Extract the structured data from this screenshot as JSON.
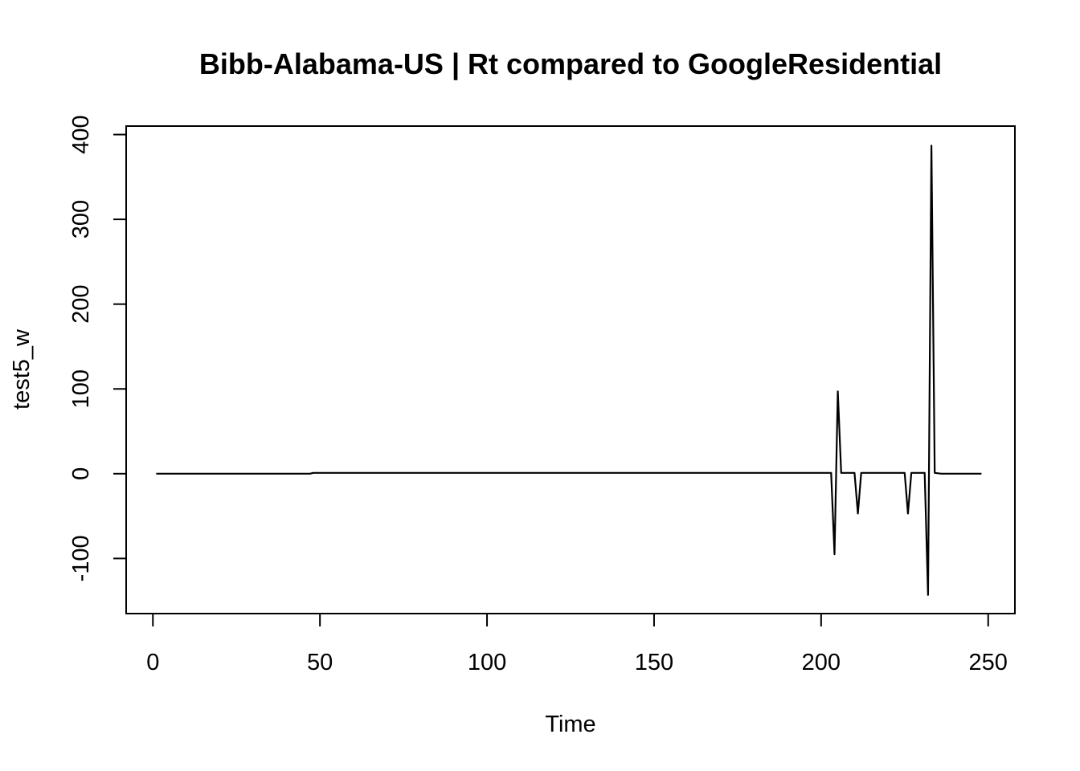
{
  "chart_data": {
    "type": "line",
    "title": "Bibb-Alabama-US | Rt compared to GoogleResidential",
    "xlabel": "Time",
    "ylabel": "test5_w",
    "xlim": [
      -8,
      258
    ],
    "ylim": [
      -165,
      410
    ],
    "x_ticks": [
      0,
      50,
      100,
      150,
      200,
      250
    ],
    "y_ticks": [
      -100,
      0,
      100,
      200,
      300,
      400
    ],
    "x_tick_labels": [
      "0",
      "50",
      "100",
      "150",
      "200",
      "250"
    ],
    "y_tick_labels": [
      "-100",
      "0",
      "100",
      "200",
      "300",
      "400"
    ],
    "grid": false,
    "legend": "none",
    "series": [
      {
        "color": "#000000",
        "x": [
          1,
          47,
          48,
          150,
          203,
          204,
          205,
          206,
          210,
          211,
          212,
          225,
          226,
          227,
          231,
          232,
          233,
          234,
          236,
          248
        ],
        "y": [
          0,
          0,
          1,
          1,
          1,
          -95,
          97,
          1,
          1,
          -47,
          1,
          1,
          -47,
          1,
          1,
          -143,
          387,
          1,
          0,
          0
        ]
      }
    ]
  }
}
